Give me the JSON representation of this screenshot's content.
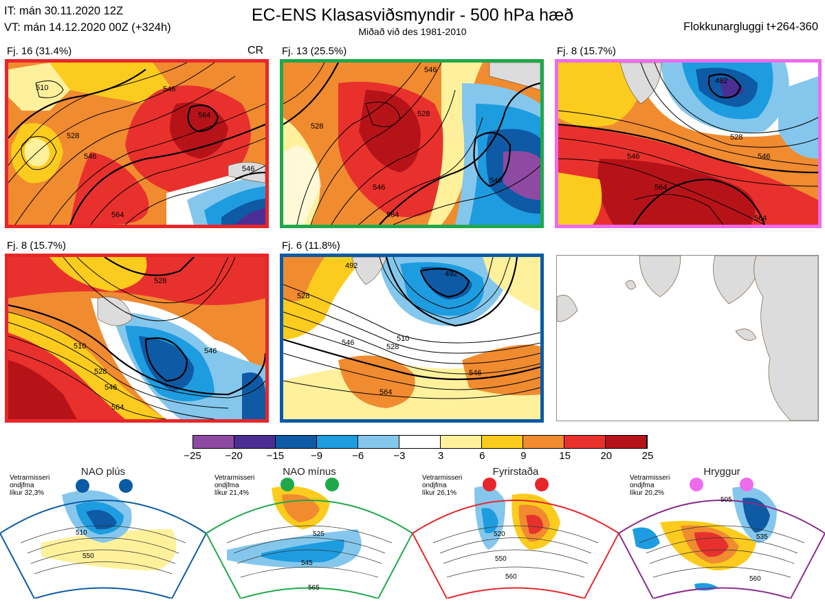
{
  "header": {
    "init_time": "IT: mán 30.11.2020 12Z",
    "valid_time": "VT: mán 14.12.2020 00Z  (+324h)",
    "title": "EC-ENS Klasasviðsmyndir - 500 hPa hæð",
    "subtitle": "Miðað við des 1981-2010",
    "cluster_window": "Flokkunargluggi t+264-360"
  },
  "clusters": [
    {
      "label": "Fj. 16 (31.4%)",
      "border": "#e8262a",
      "extra": "CR"
    },
    {
      "label": "Fj. 13 (25.5%)",
      "border": "#1fa84a"
    },
    {
      "label": "Fj. 8 (15.7%)",
      "border": "#ee6bee"
    },
    {
      "label": "Fj. 8 (15.7%)",
      "border": "#e8262a"
    },
    {
      "label": "Fj. 6 (11.8%)",
      "border": "#0a5aa6"
    }
  ],
  "contour_labels": {
    "p1": [
      "546",
      "564",
      "528",
      "546",
      "564",
      "546",
      "510"
    ],
    "p2": [
      "528",
      "546",
      "564",
      "546",
      "528",
      "546"
    ],
    "p3": [
      "492",
      "528",
      "546",
      "546",
      "564",
      "564"
    ],
    "p4": [
      "510",
      "528",
      "546",
      "564",
      "546",
      "528"
    ],
    "p5": [
      "492",
      "510",
      "528",
      "546",
      "546",
      "564",
      "492",
      "528"
    ]
  },
  "colorbar": {
    "ticks": [
      "−25",
      "−20",
      "−15",
      "−9",
      "−6",
      "−3",
      "3",
      "6",
      "9",
      "15",
      "20",
      "25"
    ],
    "colors": [
      "#8e4aa3",
      "#4b2e93",
      "#0e5aa5",
      "#1e9ce0",
      "#85c7ec",
      "#ffffff",
      "#fff19c",
      "#fbcc1d",
      "#f08b30",
      "#e8312d",
      "#b61319"
    ]
  },
  "regimes": [
    {
      "name": "NAO plús",
      "side": "Vetrarmisseri\nondjfma\nlíkur 32,3%",
      "side_lines": [
        "Vetrarmisseri",
        "ondjfma",
        "líkur 32,3%"
      ],
      "color": "#0a5aa6",
      "labels": [
        "510",
        "550"
      ]
    },
    {
      "name": "NAO mínus",
      "side_lines": [
        "Vetrarmisseri",
        "ondjfma",
        "líkur 21,4%"
      ],
      "color": "#1fa84a",
      "labels": [
        "525",
        "545",
        "565"
      ]
    },
    {
      "name": "Fyrirstaða",
      "side_lines": [
        "Vetrarmisseri",
        "ondjfma",
        "líkur 26,1%"
      ],
      "color": "#e8262a",
      "labels": [
        "520",
        "550",
        "560"
      ]
    },
    {
      "name": "Hryggur",
      "side_lines": [
        "Vetrarmisseri",
        "ondjfma",
        "líkur 20,2%"
      ],
      "color": "#8a2c8c",
      "dot": "#ee6bee",
      "labels": [
        "505",
        "535",
        "560"
      ]
    }
  ]
}
